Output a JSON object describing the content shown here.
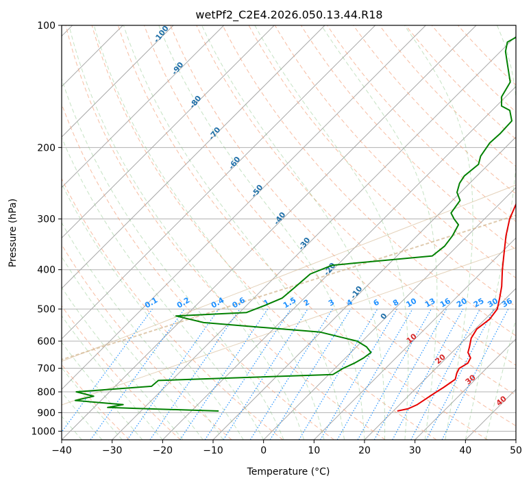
{
  "chart_data": {
    "type": "line",
    "title": "wetPf2_C2E4.2026.050.13.44.R18",
    "xlabel": "Temperature (°C)",
    "ylabel": "Pressure (hPa)",
    "xlim": [
      -40,
      50
    ],
    "ylim": [
      1050,
      100
    ],
    "y_scale": "log",
    "x_ticks": [
      -40,
      -30,
      -20,
      -10,
      0,
      10,
      20,
      30,
      40,
      50
    ],
    "y_ticks": [
      100,
      200,
      300,
      400,
      500,
      600,
      700,
      800,
      900,
      1000
    ],
    "skew": 45,
    "grid": true,
    "series": [
      {
        "color": "#e60000",
        "points": [
          [
            20.8,
            892
          ],
          [
            22.5,
            880
          ],
          [
            23.5,
            860
          ],
          [
            24.3,
            820
          ],
          [
            25.3,
            780
          ],
          [
            26.0,
            745
          ],
          [
            25.1,
            720
          ],
          [
            24.6,
            700
          ],
          [
            25.3,
            680
          ],
          [
            24.8,
            660
          ],
          [
            23.2,
            640
          ],
          [
            22.4,
            620
          ],
          [
            21.0,
            590
          ],
          [
            20.3,
            560
          ],
          [
            20.9,
            530
          ],
          [
            20.4,
            500
          ],
          [
            18.7,
            470
          ],
          [
            16.8,
            440
          ],
          [
            13.6,
            400
          ],
          [
            10.3,
            360
          ],
          [
            7.6,
            330
          ],
          [
            5.0,
            300
          ],
          [
            2.9,
            270
          ],
          [
            0.3,
            250
          ],
          [
            -2.5,
            230
          ],
          [
            -5.0,
            210
          ],
          [
            -8.2,
            190
          ],
          [
            -10.2,
            175
          ],
          [
            -12.7,
            160
          ],
          [
            -13.0,
            150
          ],
          [
            -12.8,
            145
          ],
          [
            -12.5,
            140
          ],
          [
            -11.6,
            133
          ],
          [
            -10.0,
            126
          ],
          [
            -9.5,
            120
          ],
          [
            -11.0,
            114
          ],
          [
            -14.0,
            108
          ],
          [
            -16.0,
            103
          ],
          [
            -17.0,
            100
          ]
        ]
      },
      {
        "color": "#008000",
        "points": [
          [
            -14.6,
            892
          ],
          [
            -32.2,
            878
          ],
          [
            -37.3,
            874
          ],
          [
            -34.8,
            860
          ],
          [
            -45.1,
            840
          ],
          [
            -42.3,
            820
          ],
          [
            -46.6,
            800
          ],
          [
            -32.8,
            775
          ],
          [
            -32.6,
            750
          ],
          [
            0.8,
            725
          ],
          [
            1.6,
            700
          ],
          [
            2.8,
            680
          ],
          [
            3.6,
            660
          ],
          [
            4.0,
            640
          ],
          [
            2.0,
            620
          ],
          [
            -1.0,
            600
          ],
          [
            -10.1,
            570
          ],
          [
            -35.1,
            540
          ],
          [
            -41.9,
            520
          ],
          [
            -28.6,
            510
          ],
          [
            -26.4,
            490
          ],
          [
            -24.4,
            470
          ],
          [
            -24.0,
            440
          ],
          [
            -23.6,
            410
          ],
          [
            -21.0,
            390
          ],
          [
            -3.0,
            370
          ],
          [
            -2.5,
            350
          ],
          [
            -3.0,
            330
          ],
          [
            -4.0,
            310
          ],
          [
            -6.0,
            300
          ],
          [
            -7.8,
            290
          ],
          [
            -8.5,
            270
          ],
          [
            -10.7,
            258
          ],
          [
            -12.0,
            245
          ],
          [
            -12.5,
            235
          ],
          [
            -12.0,
            220
          ],
          [
            -13.2,
            210
          ],
          [
            -14.0,
            195
          ],
          [
            -13.8,
            185
          ],
          [
            -14.0,
            172
          ],
          [
            -16.5,
            162
          ],
          [
            -19.0,
            158
          ],
          [
            -20.8,
            150
          ],
          [
            -22.0,
            138
          ],
          [
            -26.0,
            125
          ],
          [
            -29.0,
            116
          ],
          [
            -30.5,
            110
          ],
          [
            -29.5,
            106
          ],
          [
            -26.0,
            103
          ],
          [
            -23.5,
            100
          ]
        ]
      }
    ],
    "mixing_ratio_labels": [
      "0.1",
      "0.2",
      "0.4",
      "0.6",
      "1",
      "1.5",
      "2",
      "3",
      "4",
      "6",
      "8",
      "10",
      "13",
      "16",
      "20",
      "25",
      "30",
      "36"
    ],
    "dry_adiabat_labels": [
      "10",
      "20",
      "30",
      "40"
    ],
    "moist_adiabat_labels": [
      "-100",
      "-90",
      "-80",
      "-70",
      "-60",
      "-50",
      "-40",
      "-30",
      "-20",
      "-10",
      "0"
    ]
  }
}
